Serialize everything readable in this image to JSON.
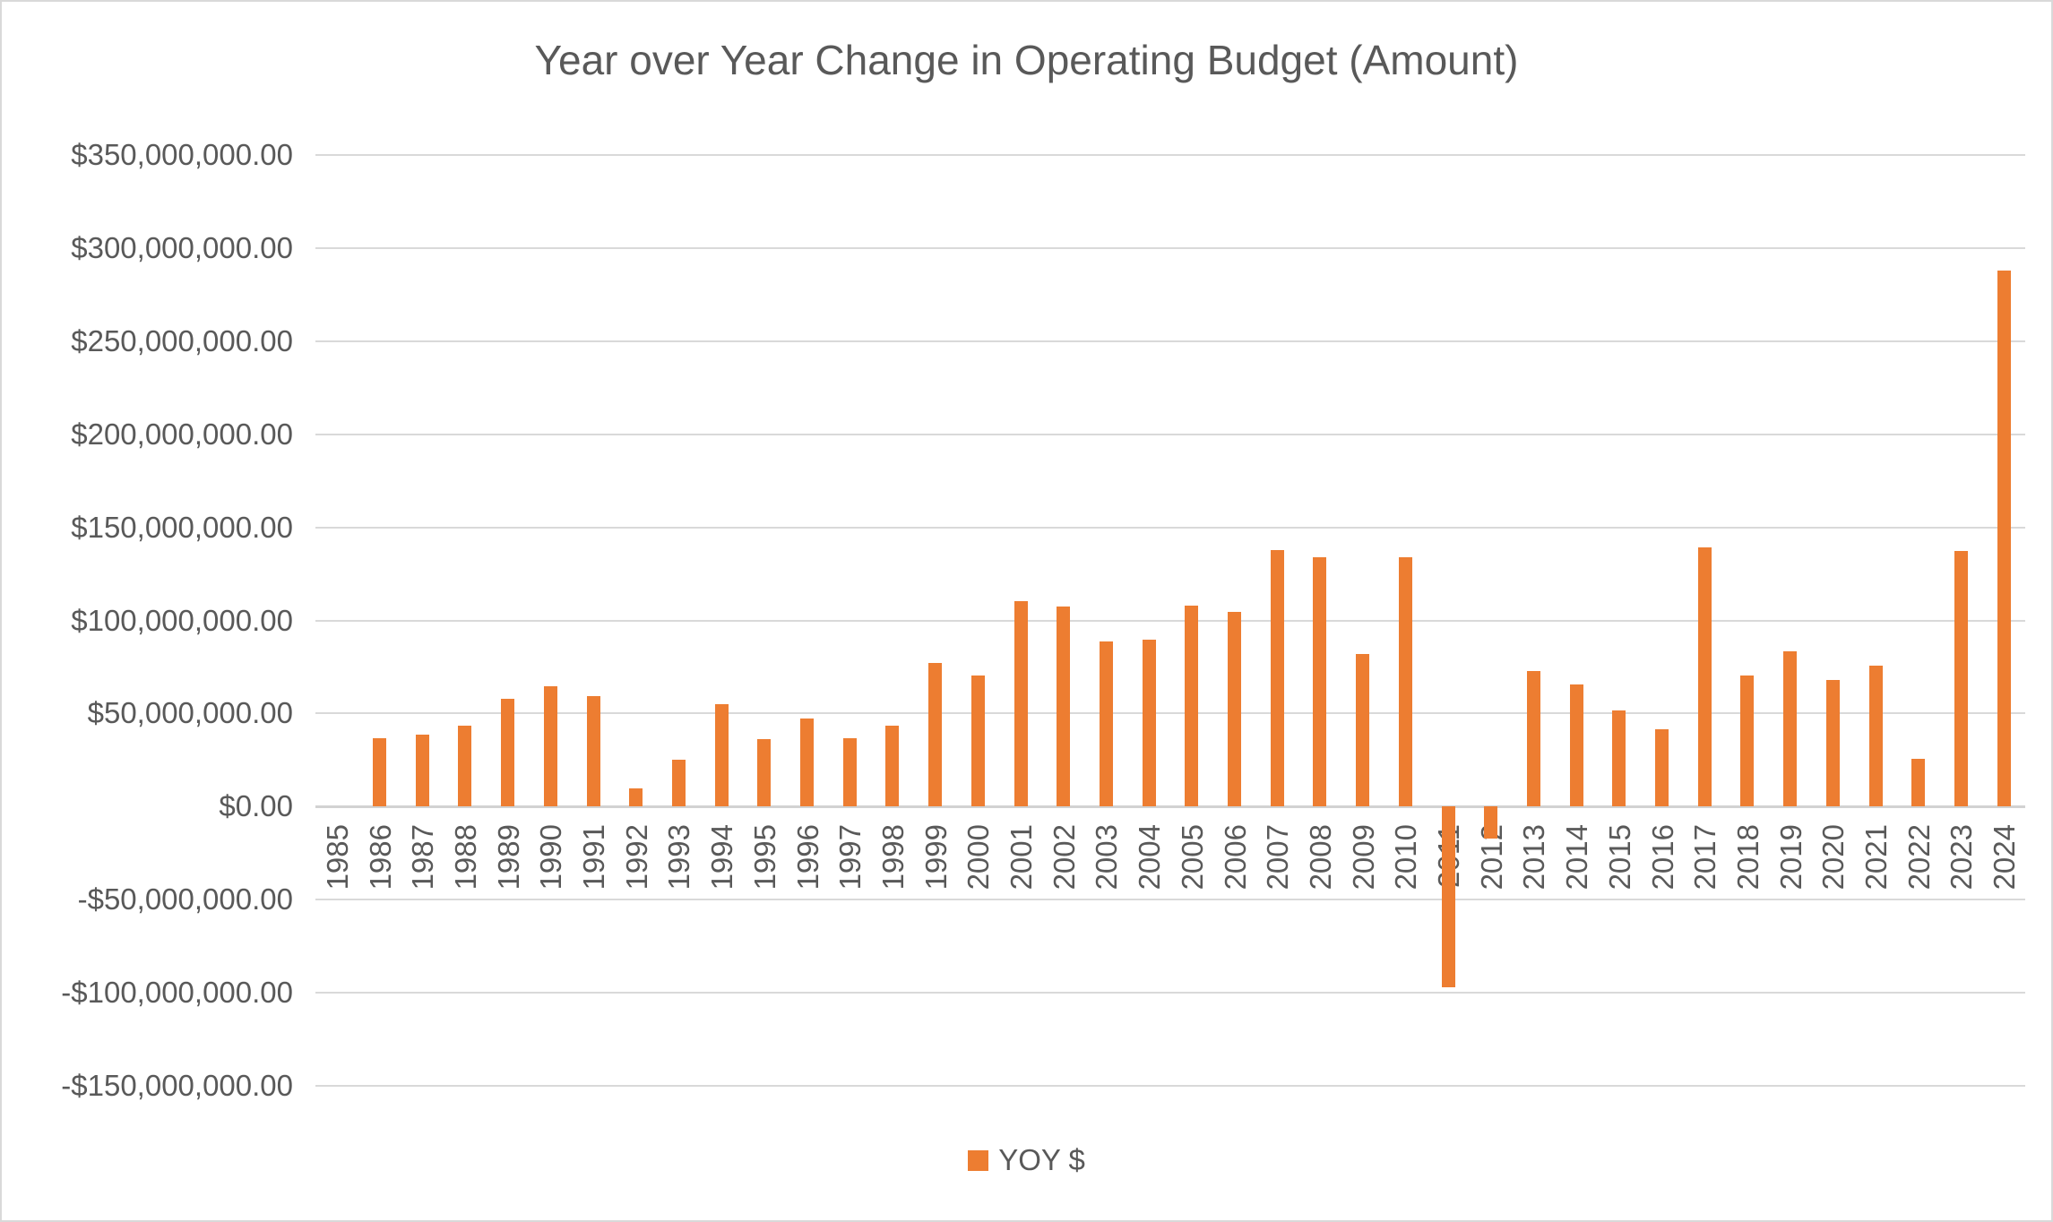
{
  "chart_data": {
    "type": "bar",
    "title": "Year over Year Change in Operating Budget (Amount)",
    "xlabel": "",
    "ylabel": "",
    "grid": true,
    "legend": {
      "label": "YOY $",
      "position": "bottom",
      "swatch_color": "#ED7D31"
    },
    "bar_color": "#ED7D31",
    "text_color": "#595959",
    "gridline_color": "#D9D9D9",
    "ylim": [
      -150000000,
      350000000
    ],
    "y_tick_step": 50000000,
    "y_ticks": [
      {
        "value": 350000000,
        "label": "$350,000,000.00"
      },
      {
        "value": 300000000,
        "label": "$300,000,000.00"
      },
      {
        "value": 250000000,
        "label": "$250,000,000.00"
      },
      {
        "value": 200000000,
        "label": "$200,000,000.00"
      },
      {
        "value": 150000000,
        "label": "$150,000,000.00"
      },
      {
        "value": 100000000,
        "label": "$100,000,000.00"
      },
      {
        "value": 50000000,
        "label": "$50,000,000.00"
      },
      {
        "value": 0,
        "label": "$0.00"
      },
      {
        "value": -50000000,
        "label": "-$50,000,000.00"
      },
      {
        "value": -100000000,
        "label": "-$100,000,000.00"
      },
      {
        "value": -150000000,
        "label": "-$150,000,000.00"
      }
    ],
    "categories": [
      "1985",
      "1986",
      "1987",
      "1988",
      "1989",
      "1990",
      "1991",
      "1992",
      "1993",
      "1994",
      "1995",
      "1996",
      "1997",
      "1998",
      "1999",
      "2000",
      "2001",
      "2002",
      "2003",
      "2004",
      "2005",
      "2006",
      "2007",
      "2008",
      "2009",
      "2010",
      "2011",
      "2012",
      "2013",
      "2014",
      "2015",
      "2016",
      "2017",
      "2018",
      "2019",
      "2020",
      "2021",
      "2022",
      "2023",
      "2024"
    ],
    "series": [
      {
        "name": "YOY $",
        "values": [
          0,
          36500000,
          38500000,
          43500000,
          58000000,
          64500000,
          59500000,
          10000000,
          25000000,
          55000000,
          36000000,
          47500000,
          36500000,
          43500000,
          77000000,
          70500000,
          110500000,
          107500000,
          88500000,
          89500000,
          108000000,
          104500000,
          138000000,
          134000000,
          82000000,
          134000000,
          -97000000,
          -17000000,
          73000000,
          65500000,
          51500000,
          41500000,
          139000000,
          70500000,
          83500000,
          68000000,
          75500000,
          25500000,
          137500000,
          288000000
        ]
      }
    ]
  }
}
